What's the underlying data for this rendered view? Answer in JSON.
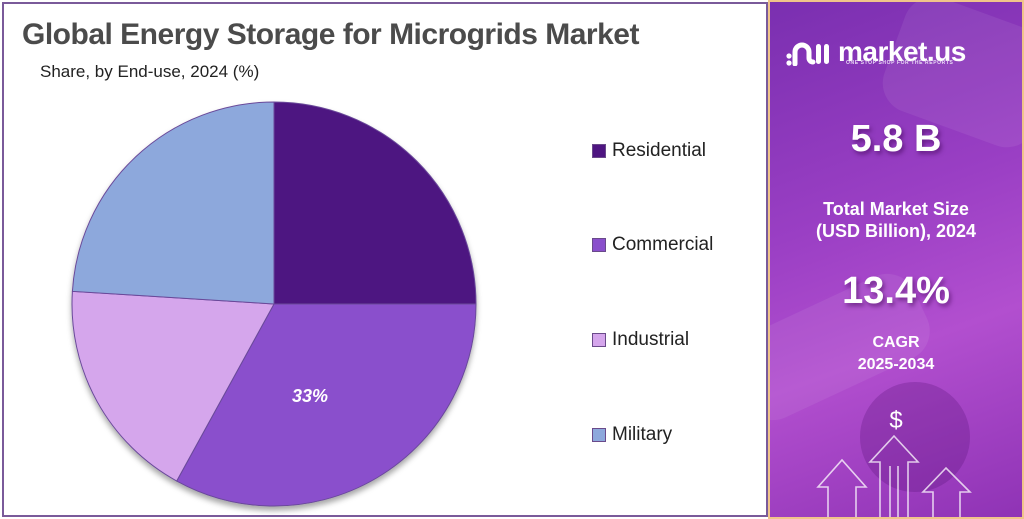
{
  "header": {
    "title": "Global Energy Storage for Microgrids Market",
    "subtitle": "Share, by End-use, 2024 (%)"
  },
  "legend": {
    "items": [
      {
        "label": "Residential",
        "color": "#4e1581"
      },
      {
        "label": "Commercial",
        "color": "#8a4fcc"
      },
      {
        "label": "Industrial",
        "color": "#d5a6ec"
      },
      {
        "label": "Military",
        "color": "#8da8dc"
      }
    ]
  },
  "pie": {
    "visible_label": "33%"
  },
  "sidebar": {
    "brand": "market.us",
    "tagline": "ONE STOP SHOP FOR THE REPORTS",
    "market_size_value": "5.8 B",
    "market_size_caption_line1": "Total Market Size",
    "market_size_caption_line2": "(USD Billion), 2024",
    "cagr_value": "13.4%",
    "cagr_caption_line1": "CAGR",
    "cagr_caption_line2": "2025-2034",
    "dollar_symbol": "$"
  },
  "colors": {
    "residential": "#4e1581",
    "commercial": "#8a4fcc",
    "industrial": "#d5a6ec",
    "military": "#8da8dc",
    "title_text": "#4b4b4b",
    "panel_purple": "#9a3fc4"
  },
  "chart_data": {
    "type": "pie",
    "title": "Global Energy Storage for Microgrids Market",
    "subtitle": "Share, by End-use, 2024 (%)",
    "categories": [
      "Residential",
      "Commercial",
      "Industrial",
      "Military"
    ],
    "values": [
      25,
      33,
      18,
      24
    ],
    "labeled_values": {
      "Commercial": 33
    },
    "colors": [
      "#4e1581",
      "#8a4fcc",
      "#d5a6ec",
      "#8da8dc"
    ],
    "start_angle_deg": 90,
    "direction": "clockwise",
    "legend_position": "right",
    "unit": "%"
  }
}
